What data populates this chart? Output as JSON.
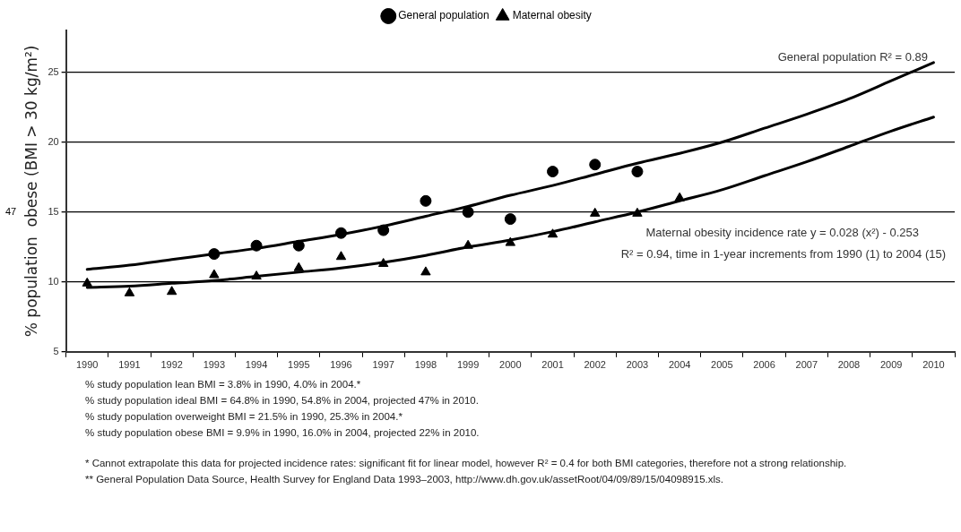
{
  "chart_data": {
    "type": "scatter",
    "ylabel": "% population  obese (BMI > 30 kg/m²)",
    "categories": [
      "1990",
      "1991",
      "1992",
      "1993",
      "1994",
      "1995",
      "1996",
      "1997",
      "1998",
      "1999",
      "2000",
      "2001",
      "2002",
      "2003",
      "2004",
      "2005",
      "2006",
      "2007",
      "2008",
      "2009",
      "2010"
    ],
    "ylim": [
      5,
      28
    ],
    "yticks": [
      5,
      10,
      15,
      20,
      25
    ],
    "grid": "y",
    "legend": "top",
    "series": [
      {
        "name": "General population",
        "marker": "circle",
        "color": "#000000",
        "values": [
          null,
          null,
          null,
          12.0,
          12.6,
          12.6,
          13.5,
          13.7,
          15.8,
          15.0,
          14.5,
          17.9,
          18.4,
          17.9,
          null,
          null,
          null,
          null,
          null,
          null,
          null
        ]
      },
      {
        "name": "Maternal obesity",
        "marker": "triangle",
        "color": "#000000",
        "values": [
          9.9,
          9.2,
          9.3,
          10.5,
          10.4,
          11.0,
          11.8,
          11.3,
          10.7,
          12.6,
          12.8,
          13.4,
          14.9,
          14.9,
          16.0,
          null,
          null,
          null,
          null,
          null,
          null
        ]
      },
      {
        "type": "line",
        "marker": "none",
        "color": "#000000",
        "values": [
          10.9,
          11.2,
          11.6,
          12.0,
          12.4,
          12.9,
          13.4,
          14.0,
          14.7,
          15.4,
          16.2,
          16.9,
          17.7,
          18.5,
          19.2,
          20.0,
          21.0,
          22.0,
          23.1,
          24.4,
          25.7
        ]
      },
      {
        "type": "line",
        "marker": "none",
        "color": "#000000",
        "values": [
          9.6,
          9.7,
          9.9,
          10.1,
          10.4,
          10.7,
          11.0,
          11.4,
          11.9,
          12.5,
          13.0,
          13.6,
          14.3,
          15.0,
          15.8,
          16.6,
          17.6,
          18.6,
          19.7,
          20.8,
          21.8
        ]
      }
    ],
    "annotations": [
      "General population R² = 0.89",
      "Maternal obesity incidence rate y = 0.028 (x²) - 0.253",
      "R² = 0.94, time in 1-year increments from 1990 (1) to 2004 (15)",
      "47",
      "% study population lean BMI = 3.8% in 1990, 4.0% in 2004.*",
      "% study population ideal BMI = 64.8% in 1990, 54.8% in 2004, projected 47% in 2010.",
      "% study population overweight BMI = 21.5% in 1990, 25.3% in 2004.*",
      "% study population obese BMI = 9.9% in 1990, 16.0% in 2004, projected 22% in 2010.",
      "* Cannot extrapolate this data for projected incidence rates: significant fit for linear model, however R² = 0.4 for both BMI categories, therefore not a strong relationship.",
      "** General Population Data Source, Health Survey for England Data 1993–2003, http://www.dh.gov.uk/assetRoot/04/09/89/15/04098915.xls."
    ]
  }
}
